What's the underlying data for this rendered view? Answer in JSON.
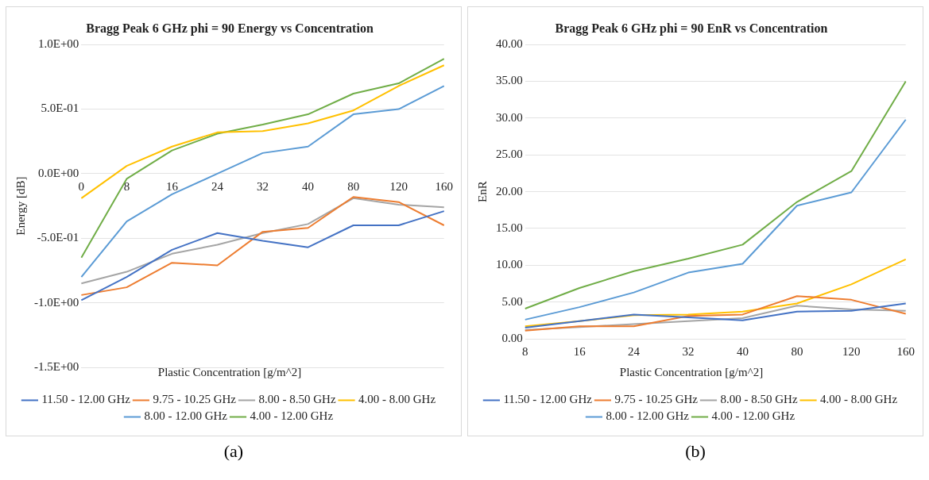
{
  "chart_data": [
    {
      "type": "line",
      "title": "Bragg Peak 6 GHz phi = 90 Energy vs Concentration",
      "xlabel": "Plastic Concentration [g/m^2]",
      "ylabel": "Energy [dB]",
      "categories": [
        "0",
        "8",
        "16",
        "24",
        "32",
        "40",
        "80",
        "120",
        "160"
      ],
      "series": [
        {
          "name": "11.50 - 12.00 GHz",
          "color": "#4472c4",
          "values": [
            -0.98,
            -0.8,
            -0.59,
            -0.46,
            -0.52,
            -0.57,
            -0.4,
            -0.4,
            -0.29
          ]
        },
        {
          "name": "9.75 - 10.25 GHz",
          "color": "#ed7d31",
          "values": [
            -0.94,
            -0.88,
            -0.69,
            -0.71,
            -0.45,
            -0.42,
            -0.18,
            -0.22,
            -0.4
          ]
        },
        {
          "name": "8.00 - 8.50 GHz",
          "color": "#a5a5a5",
          "values": [
            -0.85,
            -0.76,
            -0.62,
            -0.55,
            -0.46,
            -0.39,
            -0.19,
            -0.24,
            -0.26
          ]
        },
        {
          "name": "4.00 - 8.00 GHz",
          "color": "#ffc000",
          "values": [
            -0.19,
            0.06,
            0.21,
            0.32,
            0.33,
            0.39,
            0.49,
            0.68,
            0.84
          ]
        },
        {
          "name": "8.00 - 12.00 GHz",
          "color": "#5b9bd5",
          "values": [
            -0.8,
            -0.37,
            -0.16,
            0.0,
            0.16,
            0.21,
            0.46,
            0.5,
            0.68
          ]
        },
        {
          "name": "4.00 - 12.00 GHz",
          "color": "#70ad47",
          "values": [
            -0.65,
            -0.04,
            0.18,
            0.31,
            0.38,
            0.46,
            0.62,
            0.7,
            0.89
          ]
        }
      ],
      "ylim": [
        -1.5,
        1.0
      ],
      "yticks": [
        {
          "value": -1.5,
          "label": "-1.5E+00"
        },
        {
          "value": -1.0,
          "label": "-1.0E+00"
        },
        {
          "value": -0.5,
          "label": "-5.0E-01"
        },
        {
          "value": 0,
          "label": "0.0E+00"
        },
        {
          "value": 0.5,
          "label": "5.0E-01"
        },
        {
          "value": 1.0,
          "label": "1.0E+00"
        }
      ],
      "grid": "y",
      "legend": "bottom",
      "marker": "none",
      "annotations": [
        "(a)"
      ]
    },
    {
      "type": "line",
      "title": "Bragg Peak 6 GHz phi = 90 EnR vs Concentration",
      "xlabel": "Plastic Concentration [g/m^2]",
      "ylabel": "EnR",
      "categories": [
        "8",
        "16",
        "24",
        "32",
        "40",
        "80",
        "120",
        "160"
      ],
      "series": [
        {
          "name": "11.50 - 12.00 GHz",
          "color": "#4472c4",
          "values": [
            1.5,
            2.4,
            3.3,
            2.9,
            2.5,
            3.7,
            3.8,
            4.8
          ]
        },
        {
          "name": "9.75 - 10.25 GHz",
          "color": "#ed7d31",
          "values": [
            1.1,
            1.7,
            1.7,
            3.1,
            3.3,
            5.8,
            5.3,
            3.4
          ]
        },
        {
          "name": "8.00 - 8.50 GHz",
          "color": "#a5a5a5",
          "values": [
            1.2,
            1.6,
            2.0,
            2.4,
            2.8,
            4.5,
            4.0,
            3.8
          ]
        },
        {
          "name": "4.00 - 8.00 GHz",
          "color": "#ffc000",
          "values": [
            1.7,
            2.4,
            3.2,
            3.3,
            3.7,
            4.8,
            7.4,
            10.8
          ]
        },
        {
          "name": "8.00 - 12.00 GHz",
          "color": "#5b9bd5",
          "values": [
            2.6,
            4.3,
            6.3,
            9.0,
            10.2,
            18.1,
            19.9,
            29.8
          ]
        },
        {
          "name": "4.00 - 12.00 GHz",
          "color": "#70ad47",
          "values": [
            4.1,
            6.9,
            9.2,
            10.9,
            12.8,
            18.6,
            22.8,
            35.0
          ]
        }
      ],
      "ylim": [
        0,
        40
      ],
      "yticks": [
        {
          "value": 0,
          "label": "0.00"
        },
        {
          "value": 5,
          "label": "5.00"
        },
        {
          "value": 10,
          "label": "10.00"
        },
        {
          "value": 15,
          "label": "15.00"
        },
        {
          "value": 20,
          "label": "20.00"
        },
        {
          "value": 25,
          "label": "25.00"
        },
        {
          "value": 30,
          "label": "30.00"
        },
        {
          "value": 35,
          "label": "35.00"
        },
        {
          "value": 40,
          "label": "40.00"
        }
      ],
      "grid": "y",
      "legend": "bottom",
      "marker": "none",
      "annotations": [
        "(b)"
      ]
    }
  ]
}
